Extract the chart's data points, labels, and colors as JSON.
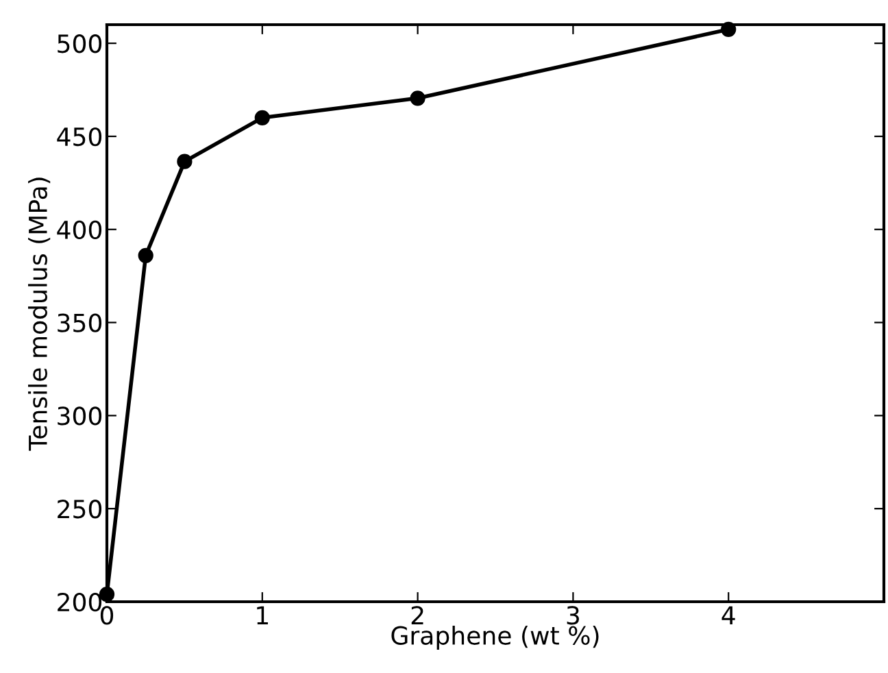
{
  "chart_data": {
    "type": "line",
    "xlabel": "Graphene (wt %)",
    "ylabel": "Tensile modulus (MPa)",
    "x": [
      0,
      0.25,
      0.5,
      1,
      2,
      4
    ],
    "series": [
      {
        "color": "#000000",
        "values": [
          204,
          386,
          436.5,
          460,
          470.5,
          507.5
        ]
      }
    ],
    "marker": "circle",
    "line_style": "solid",
    "grid": false,
    "legend": false,
    "xlim": [
      0,
      5
    ],
    "xticks": [
      0,
      1,
      2,
      3,
      4
    ],
    "ylim": [
      200,
      510
    ],
    "yticks": [
      200,
      250,
      300,
      350,
      400,
      450,
      500
    ]
  }
}
